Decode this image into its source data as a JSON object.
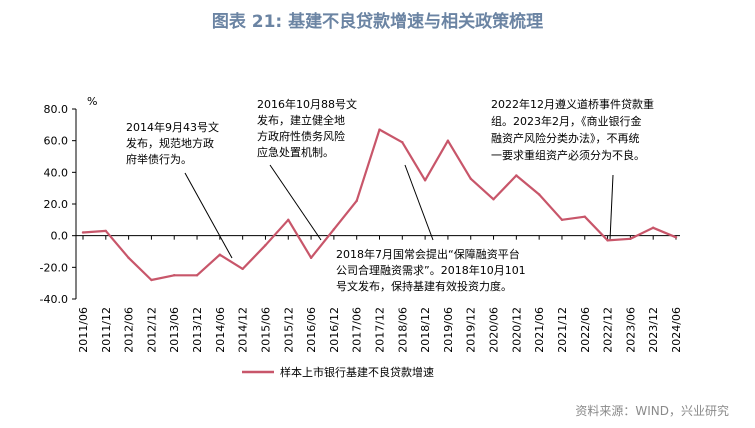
{
  "title": "图表 21: 基建不良贷款增速与相关政策梳理",
  "source": "资料来源：WIND，兴业研究",
  "chart_data": {
    "type": "line",
    "title": "图表 21: 基建不良贷款增速与相关政策梳理",
    "ylabel": "%",
    "ylim": [
      -40,
      80
    ],
    "yticks": [
      -40,
      -20,
      0,
      20,
      40,
      60,
      80
    ],
    "ytick_labels": [
      "-40.0",
      "-20.0",
      "0.0",
      "20.0",
      "40.0",
      "60.0",
      "80.0"
    ],
    "grid": false,
    "legend": "bottom",
    "categories": [
      "2011/06",
      "2011/12",
      "2012/06",
      "2012/12",
      "2013/06",
      "2013/12",
      "2014/06",
      "2014/12",
      "2015/06",
      "2015/12",
      "2016/06",
      "2016/12",
      "2017/06",
      "2017/12",
      "2018/06",
      "2018/12",
      "2019/06",
      "2019/12",
      "2020/06",
      "2020/12",
      "2021/06",
      "2021/12",
      "2022/06",
      "2022/12",
      "2023/06",
      "2023/12",
      "2024/06"
    ],
    "series": [
      {
        "name": "样本上市银行基建不良贷款增速",
        "color": "#c8566a",
        "values": [
          2,
          3,
          -14,
          -28,
          -25,
          -25,
          -12,
          -21,
          -6,
          10,
          -14,
          4,
          22,
          67,
          59,
          35,
          60,
          36,
          23,
          38,
          26,
          10,
          12,
          -3,
          -2,
          5,
          -1
        ]
      }
    ],
    "annotations": [
      {
        "id": "a2014",
        "lines": [
          "2014年9月43号文",
          "发布，规范地方政",
          "府举债行为。"
        ],
        "target": "2014/06"
      },
      {
        "id": "a2016",
        "lines": [
          "2016年10月88号文",
          "发布，建立健全地",
          "方政府性债务风险",
          "应急处置机制。"
        ],
        "target": "2016/06"
      },
      {
        "id": "a2018",
        "lines": [
          "2018年7月国常会提出“保障融资平台",
          "公司合理融资需求”。2018年10月101",
          "号文发布，保持基建有效投资力度。"
        ],
        "target": "2018/06"
      },
      {
        "id": "a2022",
        "lines": [
          "2022年12月遵义道桥事件贷款重",
          "组。2023年2月，《商业银行金",
          "融资产风险分类办法》，不再统",
          "一要求重组资产必须分为不良。"
        ],
        "target": "2022/12"
      }
    ]
  }
}
